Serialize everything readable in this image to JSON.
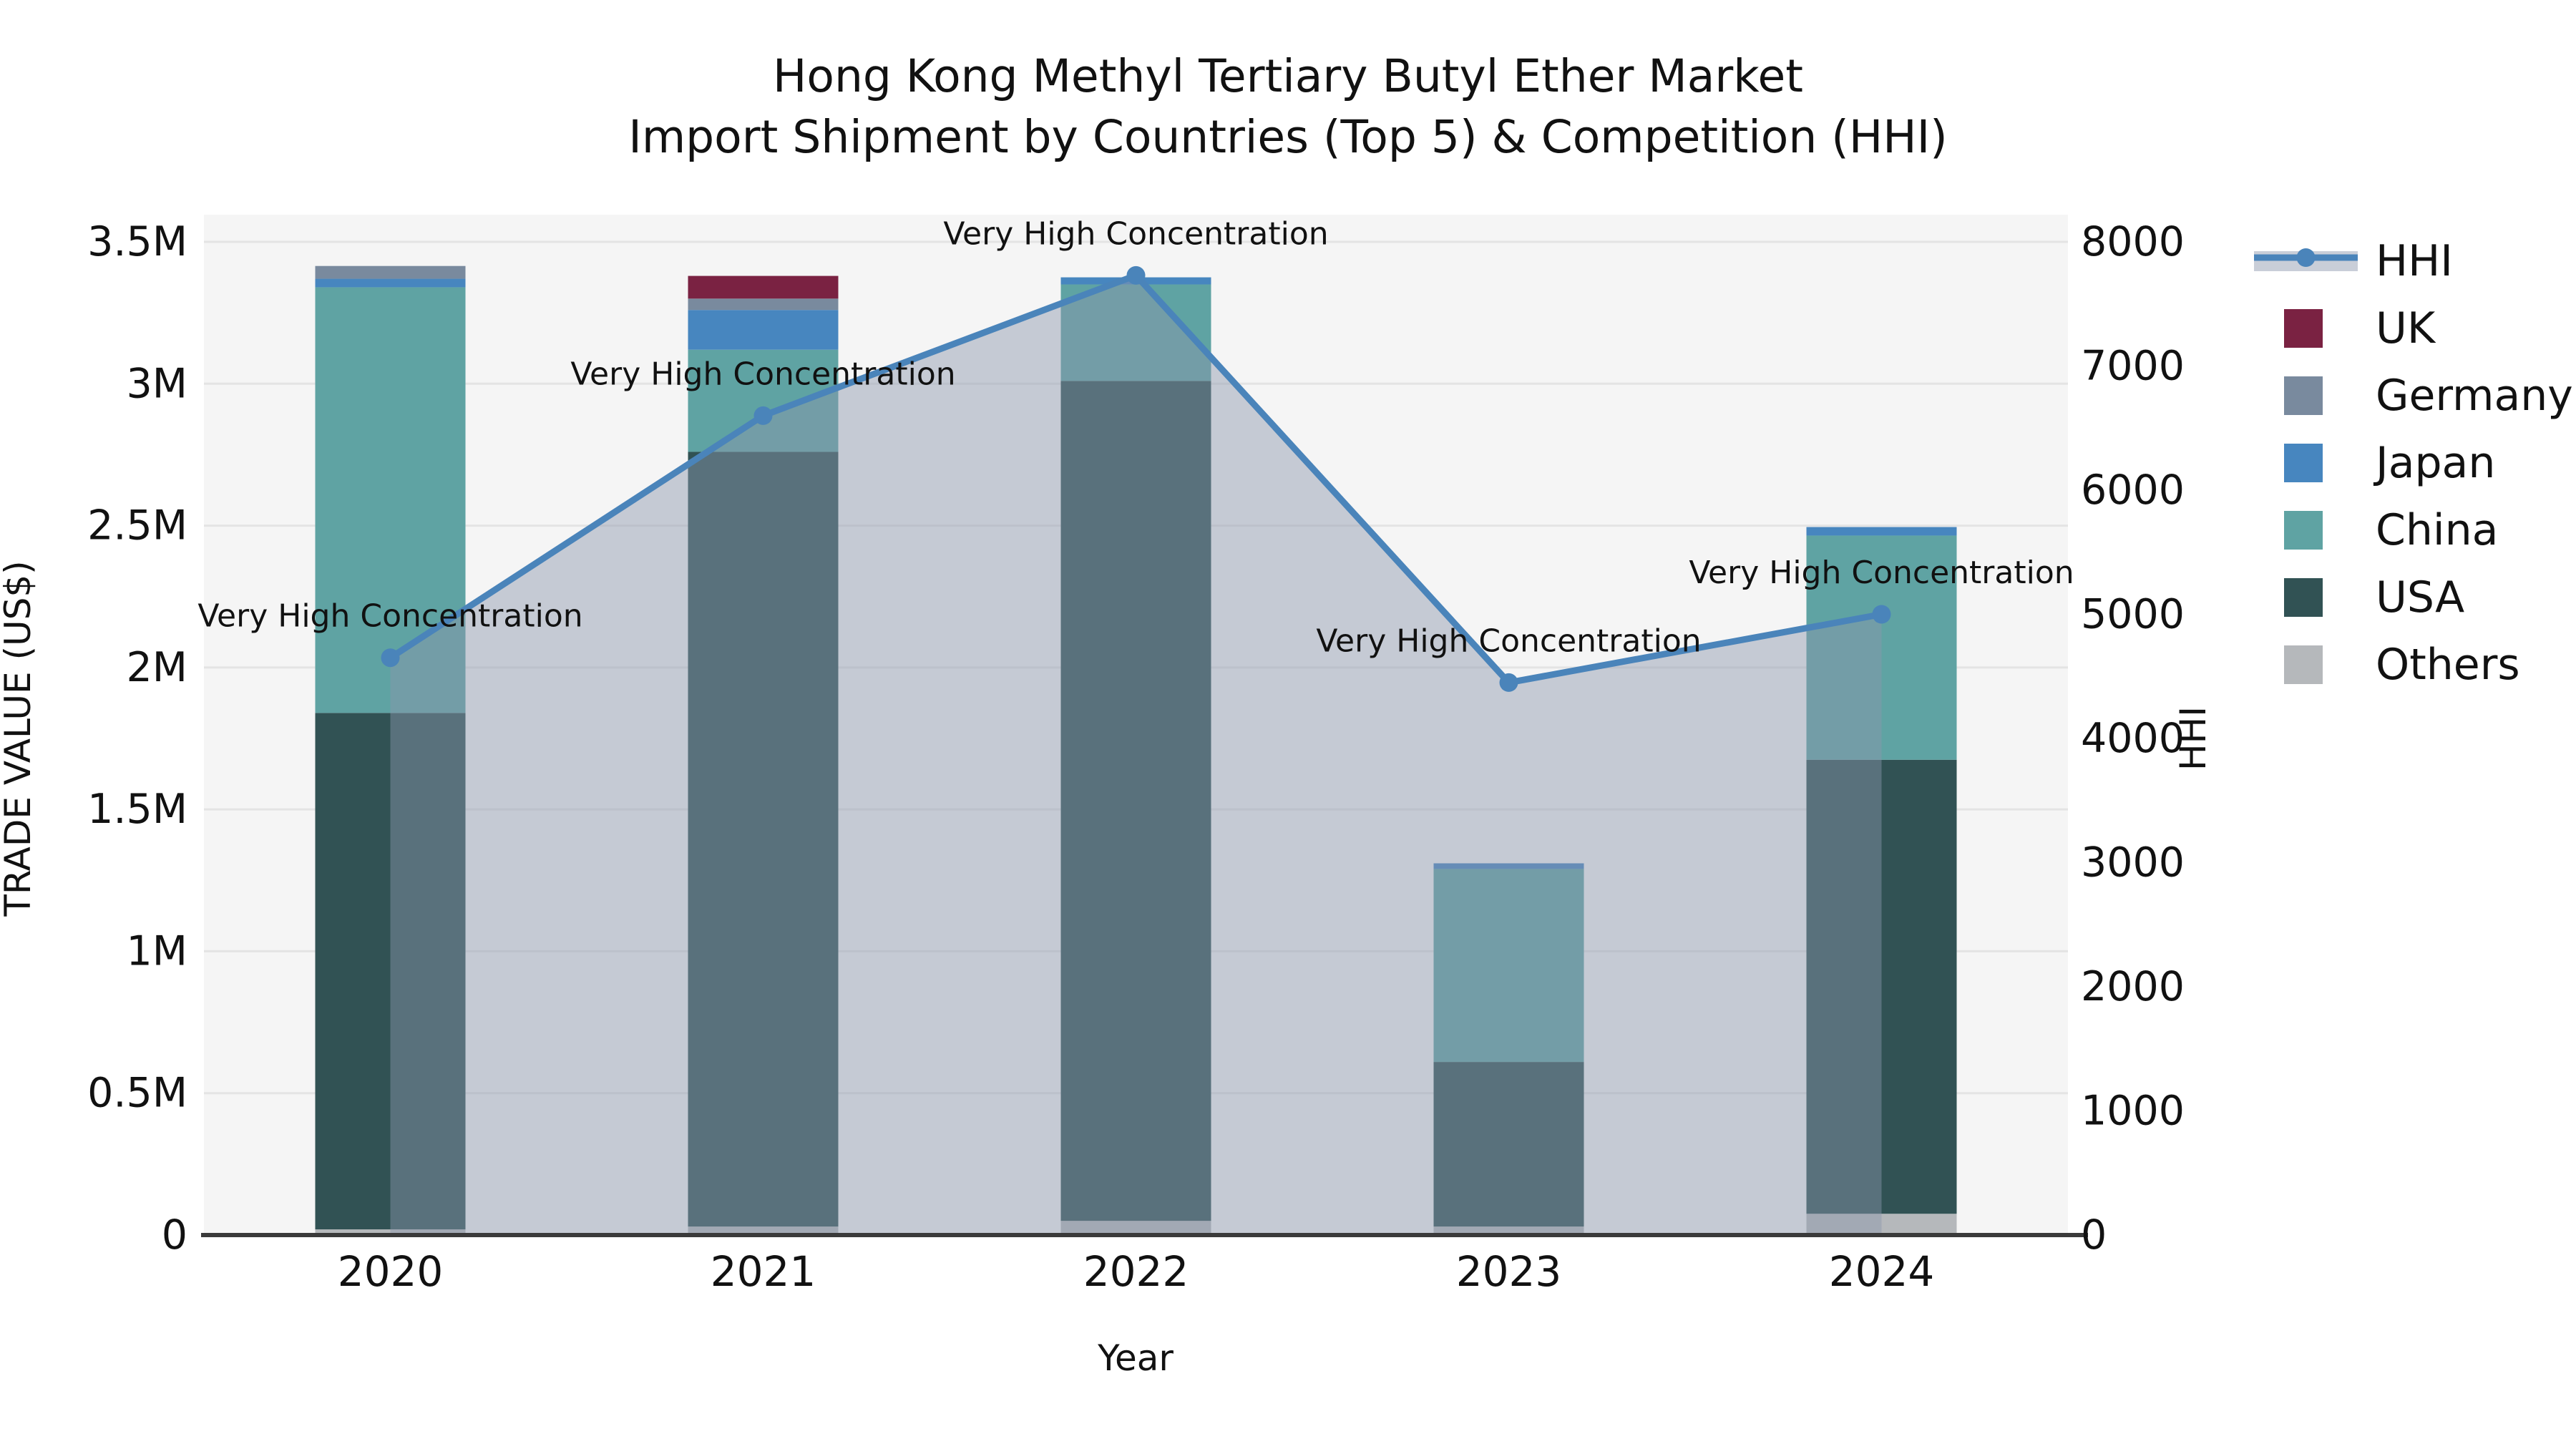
{
  "chart_data": {
    "type": "combo",
    "title_line1": "Hong Kong Methyl Tertiary Butyl Ether Market",
    "title_line2": "Import Shipment by Countries (Top 5) & Competition (HHI)",
    "xlabel": "Year",
    "ylabel_left": "TRADE VALUE (US$)",
    "ylabel_right": "HHI",
    "categories": [
      "2020",
      "2021",
      "2022",
      "2023",
      "2024"
    ],
    "stack_order_bottom_to_top": [
      "Others",
      "USA",
      "China",
      "Japan",
      "Germany",
      "UK"
    ],
    "series": [
      {
        "name": "UK",
        "color": "#7a2242",
        "values_usd": [
          0,
          80000,
          0,
          0,
          0
        ]
      },
      {
        "name": "Germany",
        "color": "#798a9e",
        "values_usd": [
          45000,
          40000,
          0,
          0,
          0
        ]
      },
      {
        "name": "Japan",
        "color": "#4786bf",
        "values_usd": [
          30000,
          140000,
          25000,
          20000,
          30000
        ]
      },
      {
        "name": "China",
        "color": "#5fa3a3",
        "values_usd": [
          1500000,
          360000,
          340000,
          680000,
          790000
        ]
      },
      {
        "name": "USA",
        "color": "#315254",
        "values_usd": [
          1820000,
          2730000,
          2960000,
          580000,
          1600000
        ]
      },
      {
        "name": "Others",
        "color": "#b5b8bb",
        "values_usd": [
          20000,
          30000,
          50000,
          30000,
          75000
        ]
      }
    ],
    "line_series": {
      "name": "HHI",
      "axis": "right",
      "color": "#4a84ba",
      "area_fill_color": "rgba(140,150,172,0.45)",
      "values": [
        4650,
        6600,
        7730,
        4450,
        5000
      ]
    },
    "annotations": [
      {
        "text": "Very High Concentration",
        "category": "2020"
      },
      {
        "text": "Very High Concentration",
        "category": "2021"
      },
      {
        "text": "Very High Concentration",
        "category": "2022"
      },
      {
        "text": "Very High Concentration",
        "category": "2023"
      },
      {
        "text": "Very High Concentration",
        "category": "2024"
      }
    ],
    "y_left": {
      "min": 0,
      "max": 3500000,
      "tick_values": [
        0,
        500000,
        1000000,
        1500000,
        2000000,
        2500000,
        3000000,
        3500000
      ],
      "tick_labels": [
        "0",
        "0.5M",
        "1M",
        "1.5M",
        "2M",
        "2.5M",
        "3M",
        "3.5M"
      ]
    },
    "y_right": {
      "min": 0,
      "max": 8000,
      "tick_values": [
        0,
        1000,
        2000,
        3000,
        4000,
        5000,
        6000,
        7000,
        8000
      ],
      "tick_labels": [
        "0",
        "1000",
        "2000",
        "3000",
        "4000",
        "5000",
        "6000",
        "7000",
        "8000"
      ]
    },
    "legend": [
      {
        "label": "HHI",
        "type": "line"
      },
      {
        "label": "UK",
        "type": "patch"
      },
      {
        "label": "Germany",
        "type": "patch"
      },
      {
        "label": "Japan",
        "type": "patch"
      },
      {
        "label": "China",
        "type": "patch"
      },
      {
        "label": "USA",
        "type": "patch"
      },
      {
        "label": "Others",
        "type": "patch"
      }
    ],
    "legend_position": "right",
    "grid": true,
    "colors": {
      "page_background": "#ffffff",
      "plot_background": "#f5f5f5",
      "grid_line": "#e4e4e4",
      "axis_line": "#3a3a3a",
      "text": "#111111",
      "legend_line_band": "#c9ced8"
    }
  }
}
